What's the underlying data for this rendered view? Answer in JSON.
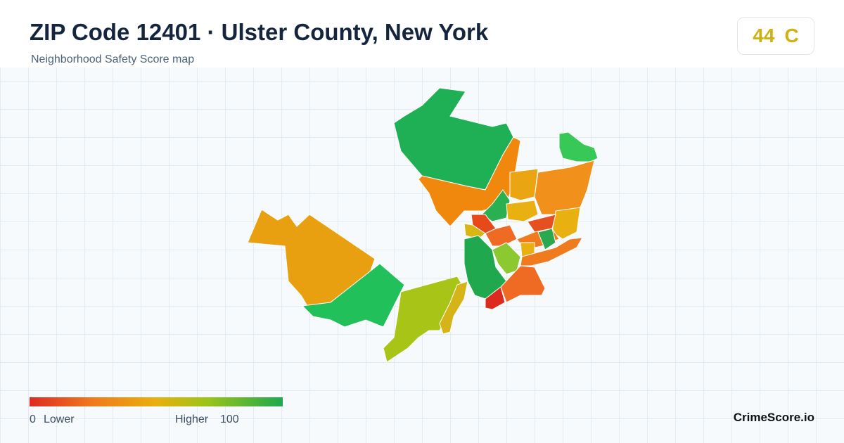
{
  "header": {
    "title": "ZIP Code 12401 · Ulster County, New York",
    "subtitle": "Neighborhood Safety Score map"
  },
  "score": {
    "value": 44,
    "grade": "C"
  },
  "legend": {
    "min": 0,
    "min_label": "Lower",
    "max_label": "Higher",
    "max": 100
  },
  "brand": "CrimeScore.io"
}
